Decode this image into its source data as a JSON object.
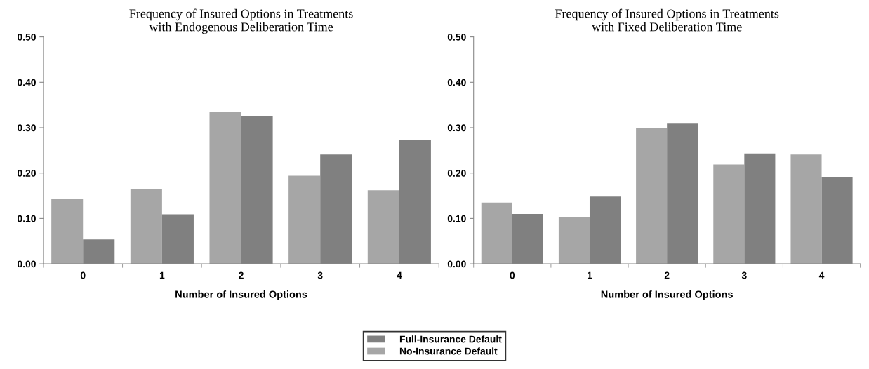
{
  "chart_data": [
    {
      "type": "bar",
      "title": "Frequency of Insured Options in Treatments\nwith Endogenous Deliberation Time",
      "xlabel": "Number of Insured Options",
      "categories": [
        "0",
        "1",
        "2",
        "3",
        "4"
      ],
      "ylim": [
        0,
        0.5
      ],
      "yticks": [
        {
          "value": 0,
          "label": "0.00"
        },
        {
          "value": 0.1,
          "label": "0.10"
        },
        {
          "value": 0.2,
          "label": "0.20"
        },
        {
          "value": 0.3,
          "label": "0.30"
        },
        {
          "value": 0.4,
          "label": "0.40"
        },
        {
          "value": 0.5,
          "label": "0.50"
        }
      ],
      "grid": false,
      "legend": "bottom",
      "series": [
        {
          "name": "No-Insurance Default",
          "color": "#a6a6a6",
          "values": [
            0.144,
            0.164,
            0.334,
            0.194,
            0.162
          ]
        },
        {
          "name": "Full-Insurance Default",
          "color": "#808080",
          "values": [
            0.054,
            0.109,
            0.326,
            0.241,
            0.273
          ]
        }
      ]
    },
    {
      "type": "bar",
      "title": "Frequency of Insured Options in Treatments\nwith Fixed Deliberation Time",
      "xlabel": "Number of Insured Options",
      "categories": [
        "0",
        "1",
        "2",
        "3",
        "4"
      ],
      "ylim": [
        0,
        0.5
      ],
      "yticks": [
        {
          "value": 0,
          "label": "0.00"
        },
        {
          "value": 0.1,
          "label": "0.10"
        },
        {
          "value": 0.2,
          "label": "0.20"
        },
        {
          "value": 0.3,
          "label": "0.30"
        },
        {
          "value": 0.4,
          "label": "0.40"
        },
        {
          "value": 0.5,
          "label": "0.50"
        }
      ],
      "grid": false,
      "series": [
        {
          "color": "#a6a6a6",
          "values": [
            0.135,
            0.102,
            0.3,
            0.219,
            0.241
          ]
        },
        {
          "color": "#808080",
          "values": [
            0.11,
            0.148,
            0.309,
            0.243,
            0.191
          ]
        }
      ]
    }
  ]
}
